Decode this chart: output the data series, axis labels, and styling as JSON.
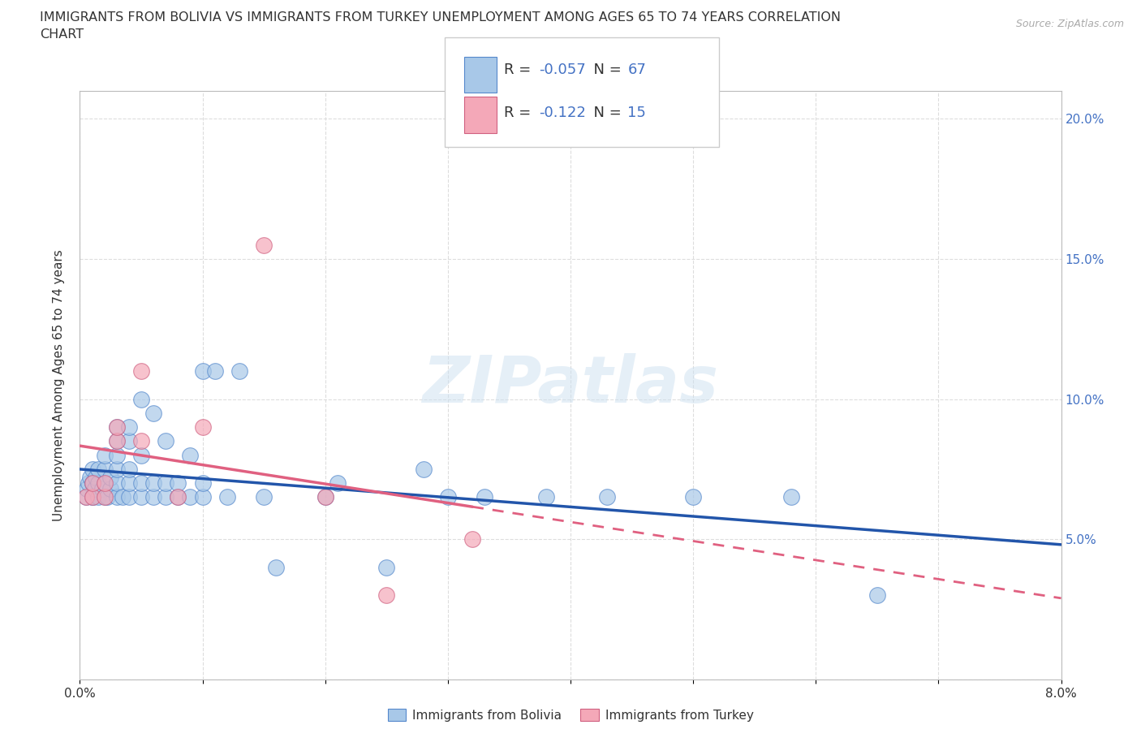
{
  "title_line1": "IMMIGRANTS FROM BOLIVIA VS IMMIGRANTS FROM TURKEY UNEMPLOYMENT AMONG AGES 65 TO 74 YEARS CORRELATION",
  "title_line2": "CHART",
  "source_text": "Source: ZipAtlas.com",
  "ylabel": "Unemployment Among Ages 65 to 74 years",
  "xlim": [
    0.0,
    0.08
  ],
  "ylim": [
    0.0,
    0.21
  ],
  "bolivia_color": "#a8c8e8",
  "bolivia_edge_color": "#5588cc",
  "turkey_color": "#f4a8b8",
  "turkey_edge_color": "#d06080",
  "bolivia_line_color": "#2255aa",
  "turkey_line_color": "#e06080",
  "bolivia_R": -0.057,
  "bolivia_N": 67,
  "turkey_R": -0.122,
  "turkey_N": 15,
  "watermark": "ZIPatlas",
  "bolivia_x": [
    0.0005,
    0.0006,
    0.0007,
    0.0008,
    0.001,
    0.001,
    0.001,
    0.001,
    0.001,
    0.0012,
    0.0013,
    0.0015,
    0.0015,
    0.0015,
    0.0018,
    0.002,
    0.002,
    0.002,
    0.002,
    0.0022,
    0.0025,
    0.0025,
    0.003,
    0.003,
    0.003,
    0.003,
    0.003,
    0.003,
    0.0035,
    0.004,
    0.004,
    0.004,
    0.004,
    0.004,
    0.005,
    0.005,
    0.005,
    0.005,
    0.006,
    0.006,
    0.006,
    0.007,
    0.007,
    0.007,
    0.008,
    0.008,
    0.009,
    0.009,
    0.01,
    0.01,
    0.01,
    0.011,
    0.012,
    0.013,
    0.015,
    0.016,
    0.02,
    0.021,
    0.025,
    0.028,
    0.03,
    0.033,
    0.038,
    0.043,
    0.05,
    0.058,
    0.065
  ],
  "bolivia_y": [
    0.065,
    0.068,
    0.07,
    0.072,
    0.065,
    0.07,
    0.075,
    0.065,
    0.07,
    0.068,
    0.072,
    0.065,
    0.07,
    0.075,
    0.068,
    0.065,
    0.07,
    0.075,
    0.08,
    0.065,
    0.068,
    0.072,
    0.065,
    0.07,
    0.075,
    0.08,
    0.085,
    0.09,
    0.065,
    0.065,
    0.07,
    0.075,
    0.085,
    0.09,
    0.065,
    0.07,
    0.08,
    0.1,
    0.065,
    0.07,
    0.095,
    0.065,
    0.07,
    0.085,
    0.065,
    0.07,
    0.065,
    0.08,
    0.065,
    0.07,
    0.11,
    0.11,
    0.065,
    0.11,
    0.065,
    0.04,
    0.065,
    0.07,
    0.04,
    0.075,
    0.065,
    0.065,
    0.065,
    0.065,
    0.065,
    0.065,
    0.03
  ],
  "turkey_x": [
    0.0005,
    0.001,
    0.001,
    0.002,
    0.002,
    0.003,
    0.003,
    0.005,
    0.005,
    0.008,
    0.01,
    0.015,
    0.02,
    0.025,
    0.032
  ],
  "turkey_y": [
    0.065,
    0.065,
    0.07,
    0.065,
    0.07,
    0.085,
    0.09,
    0.085,
    0.11,
    0.065,
    0.09,
    0.155,
    0.065,
    0.03,
    0.05
  ],
  "background_color": "#ffffff",
  "grid_color": "#dddddd",
  "value_text_color": "#4472c4",
  "label_text_color": "#333333"
}
